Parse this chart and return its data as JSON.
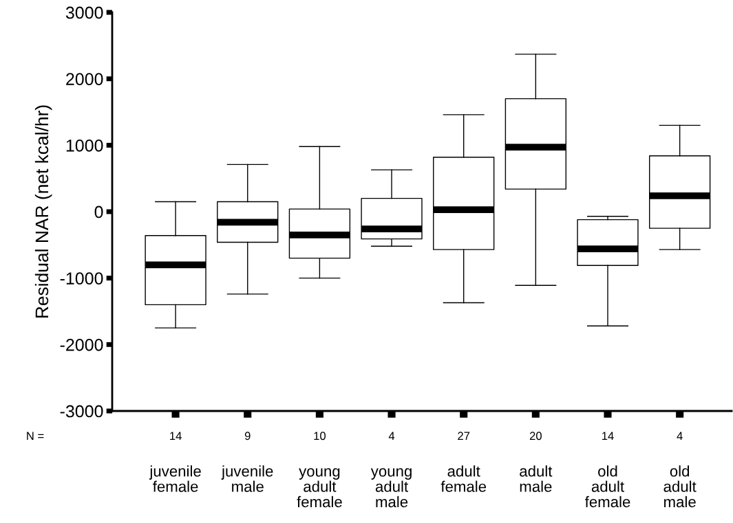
{
  "chart_data": {
    "type": "box",
    "ylabel": "Residual NAR (net kcal/hr)",
    "categories": [
      "juvenile\nfemale",
      "juvenile\nmale",
      "young\nadult\nfemale",
      "young\nadult\nmale",
      "adult\nfemale",
      "adult\nmale",
      "old\nadult\nfemale",
      "old\nadult\nmale"
    ],
    "boxes": [
      {
        "low": -1750,
        "q1": -1400,
        "median": -800,
        "q3": -360,
        "high": 150
      },
      {
        "low": -1240,
        "q1": -460,
        "median": -160,
        "q3": 150,
        "high": 710
      },
      {
        "low": -1000,
        "q1": -700,
        "median": -350,
        "q3": 40,
        "high": 980
      },
      {
        "low": -520,
        "q1": -410,
        "median": -260,
        "q3": 200,
        "high": 630
      },
      {
        "low": -1370,
        "q1": -570,
        "median": 30,
        "q3": 820,
        "high": 1460
      },
      {
        "low": -1110,
        "q1": 340,
        "median": 970,
        "q3": 1700,
        "high": 2370
      },
      {
        "low": -1720,
        "q1": -810,
        "median": -560,
        "q3": -120,
        "high": -70
      },
      {
        "low": -570,
        "q1": -250,
        "median": 240,
        "q3": 840,
        "high": 1300
      }
    ],
    "ylim": [
      -3000,
      3000
    ],
    "yticks": [
      -3000,
      -2000,
      -1000,
      0,
      1000,
      2000,
      3000
    ],
    "grid": false,
    "annotations": [
      "N =",
      "14",
      "9",
      "10",
      "4",
      "27",
      "20",
      "14",
      "4"
    ]
  }
}
